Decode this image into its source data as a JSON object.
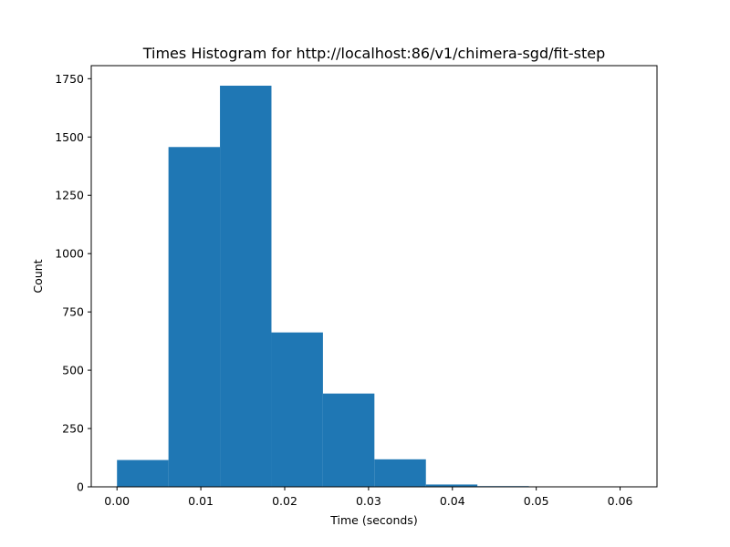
{
  "chart_data": {
    "type": "bar",
    "title": "Times Histogram for http://localhost:86/v1/chimera-sgd/fit-step",
    "xlabel": "Time (seconds)",
    "ylabel": "Count",
    "bar_color": "#1f77b4",
    "grid": false,
    "xlim": [
      -0.00307,
      0.0644
    ],
    "ylim": [
      0,
      1806
    ],
    "x_ticks": [
      0.0,
      0.01,
      0.02,
      0.03,
      0.04,
      0.05,
      0.06
    ],
    "x_tick_labels": [
      "0.00",
      "0.01",
      "0.02",
      "0.03",
      "0.04",
      "0.05",
      "0.06"
    ],
    "y_ticks": [
      0,
      250,
      500,
      750,
      1000,
      1250,
      1500,
      1750
    ],
    "y_tick_labels": [
      "0",
      "250",
      "500",
      "750",
      "1000",
      "1250",
      "1500",
      "1750"
    ],
    "bins": [
      {
        "x0": 0.0,
        "x1": 0.00614,
        "count": 115
      },
      {
        "x0": 0.00614,
        "x1": 0.01228,
        "count": 1457
      },
      {
        "x0": 0.01228,
        "x1": 0.01842,
        "count": 1720
      },
      {
        "x0": 0.01842,
        "x1": 0.02456,
        "count": 662
      },
      {
        "x0": 0.02456,
        "x1": 0.0307,
        "count": 400
      },
      {
        "x0": 0.0307,
        "x1": 0.03684,
        "count": 118
      },
      {
        "x0": 0.03684,
        "x1": 0.04298,
        "count": 10
      },
      {
        "x0": 0.04298,
        "x1": 0.04912,
        "count": 3
      },
      {
        "x0": 0.04912,
        "x1": 0.05526,
        "count": 1
      },
      {
        "x0": 0.05526,
        "x1": 0.0614,
        "count": 1
      }
    ]
  }
}
